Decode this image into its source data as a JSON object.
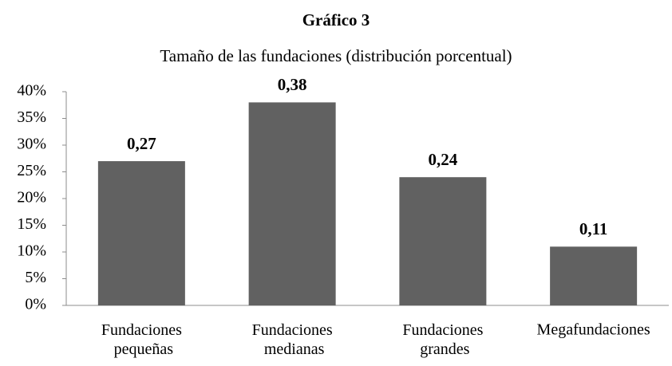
{
  "chart_data": {
    "type": "bar",
    "title": "Gráfico 3",
    "subtitle": "Tamaño de las fundaciones (distribución porcentual)",
    "categories": [
      "Fundaciones pequeñas",
      "Fundaciones medianas",
      "Fundaciones grandes",
      "Megafundaciones"
    ],
    "values": [
      27,
      38,
      24,
      11
    ],
    "value_labels": [
      "0,27",
      "0,38",
      "0,24",
      "0,11"
    ],
    "color": "#616161",
    "ylim": [
      0,
      40
    ],
    "yticks": [
      {
        "value": 0,
        "label": "0%"
      },
      {
        "value": 5,
        "label": "5%"
      },
      {
        "value": 10,
        "label": "10%"
      },
      {
        "value": 15,
        "label": "15%"
      },
      {
        "value": 20,
        "label": "20%"
      },
      {
        "value": 25,
        "label": "25%"
      },
      {
        "value": 30,
        "label": "30%"
      },
      {
        "value": 35,
        "label": "35%"
      },
      {
        "value": 40,
        "label": "40%"
      }
    ],
    "grid": false
  }
}
